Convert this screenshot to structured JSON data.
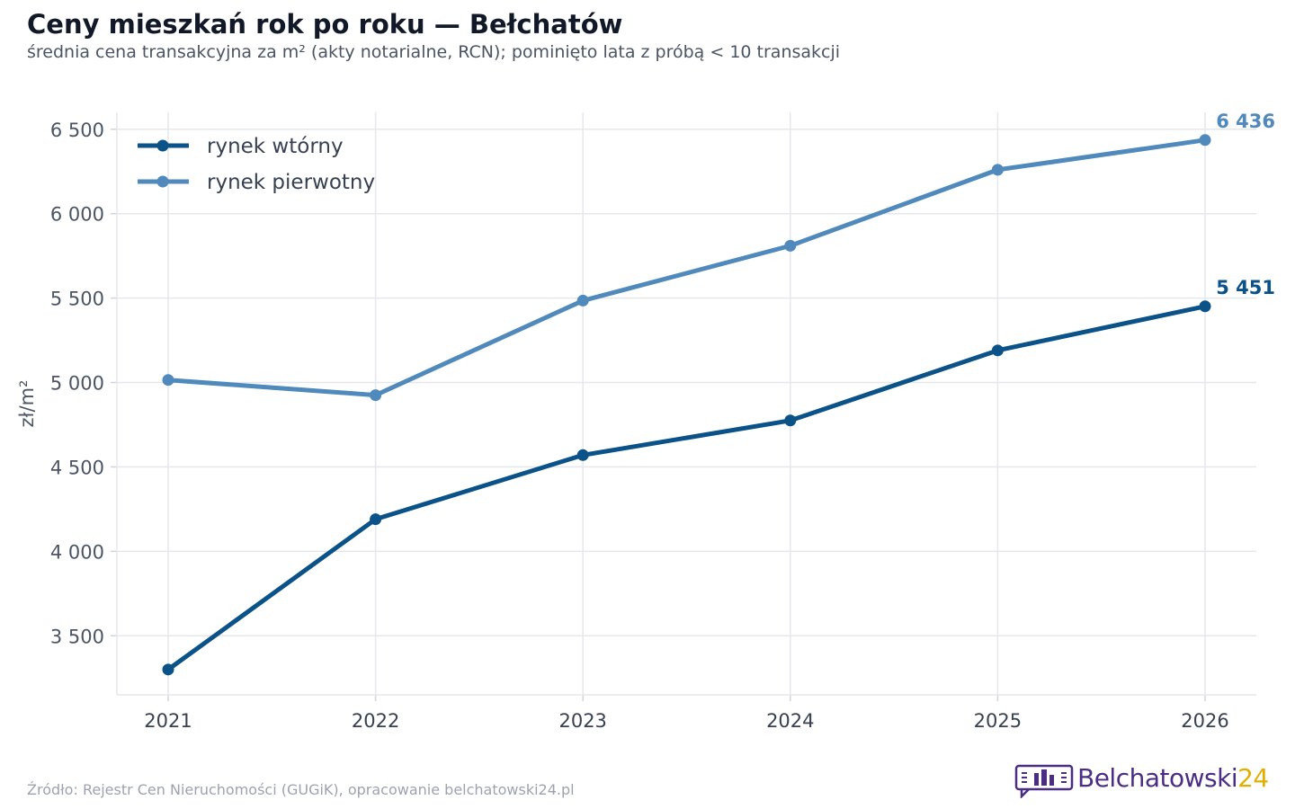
{
  "header": {
    "title": "Ceny mieszkań rok po roku — Bełchatów",
    "subtitle": "średnia cena transakcyjna za m² (akty notarialne, RCN); pominięto lata z próbą < 10 transakcji"
  },
  "footer": {
    "source": "Źródło: Rejestr Cen Nieruchomości (GUGiK), opracowanie belchatowski24.pl",
    "logo_name": "Belchatowski",
    "logo_number": "24"
  },
  "colors": {
    "secondary_market": "#0b5288",
    "primary_market": "#5089bb",
    "logo_purple": "#4b2e83",
    "logo_yellow": "#e0b000"
  },
  "chart_data": {
    "type": "line",
    "x": [
      "2021",
      "2022",
      "2023",
      "2024",
      "2025",
      "2026"
    ],
    "ylabel": "zł/m²",
    "ylim": [
      3150,
      6600
    ],
    "yticks": [
      3500,
      4000,
      4500,
      5000,
      5500,
      6000,
      6500
    ],
    "ytick_labels": [
      "3 500",
      "4 000",
      "4 500",
      "5 000",
      "5 500",
      "6 000",
      "6 500"
    ],
    "grid": true,
    "legend_position": "top-left",
    "series": [
      {
        "name": "rynek wtórny",
        "color": "#0b5288",
        "values": [
          3300,
          4190,
          4570,
          4775,
          5190,
          5451
        ],
        "end_label": "5 451"
      },
      {
        "name": "rynek pierwotny",
        "color": "#5089bb",
        "values": [
          5015,
          4925,
          5485,
          5810,
          6260,
          6436
        ],
        "end_label": "6 436"
      }
    ]
  }
}
